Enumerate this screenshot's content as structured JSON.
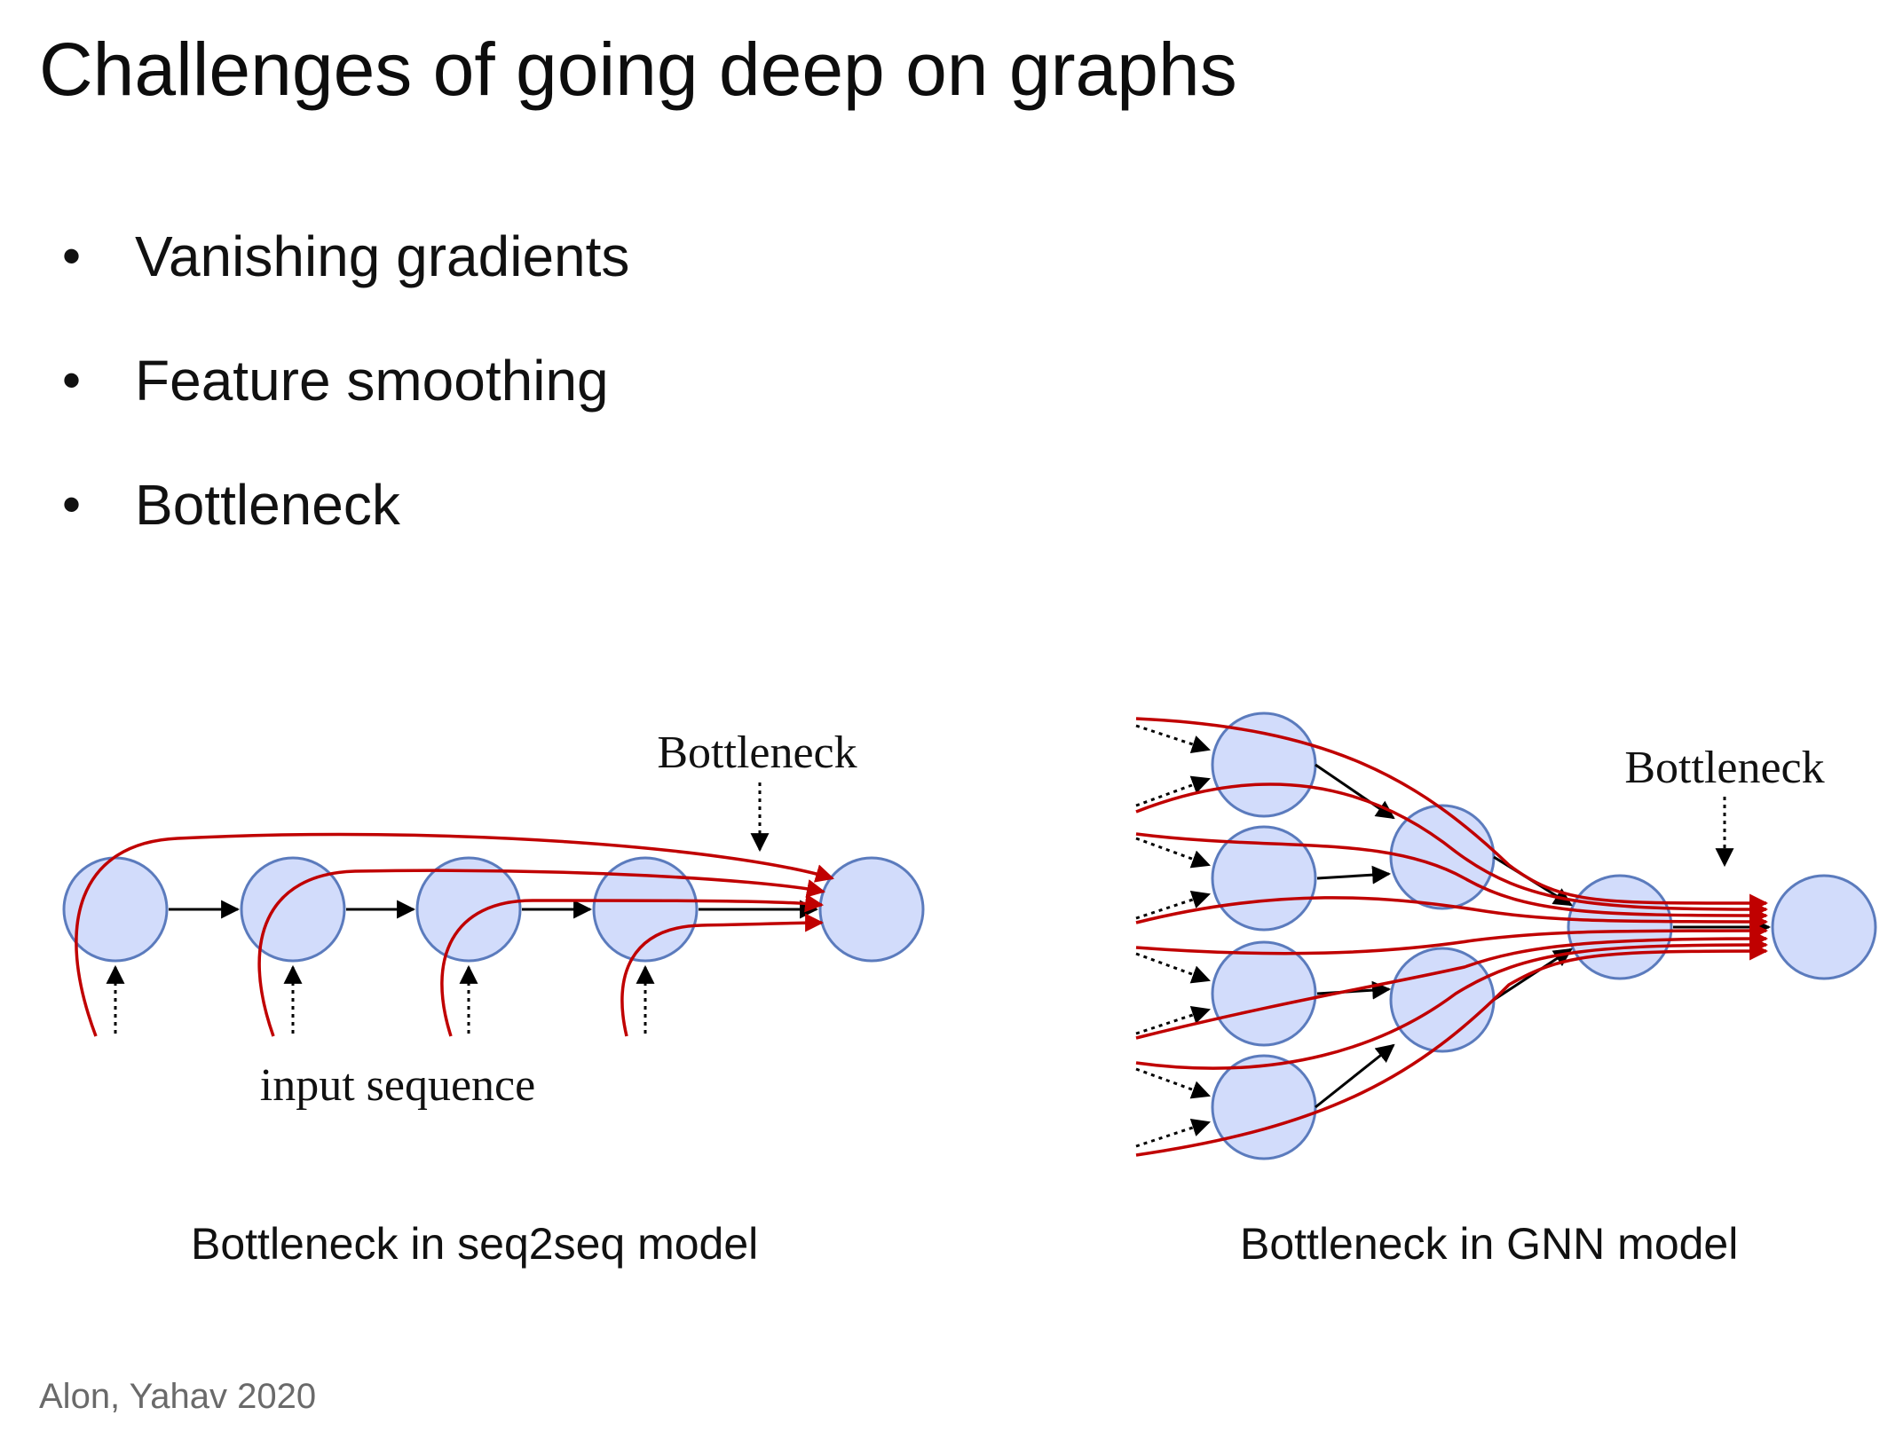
{
  "slide": {
    "title": "Challenges of going deep on graphs",
    "bullets": [
      "Vanishing gradients",
      "Feature smoothing",
      "Bottleneck"
    ],
    "citation": "Alon, Yahav 2020"
  },
  "left_diagram": {
    "bottleneck_label": "Bottleneck",
    "input_label": "input sequence",
    "caption": "Bottleneck in seq2seq model"
  },
  "right_diagram": {
    "bottleneck_label": "Bottleneck",
    "caption": "Bottleneck in GNN model"
  },
  "colors": {
    "node_fill": "#d2dcfb",
    "node_stroke": "#5b7bbd",
    "flow_line": "#c00000",
    "arrow": "#000000"
  }
}
